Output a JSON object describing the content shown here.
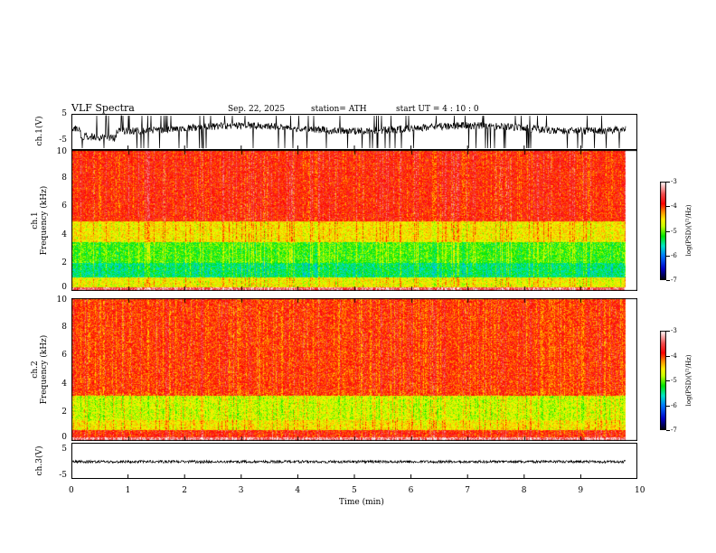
{
  "header": {
    "title": "VLF  Spectra",
    "date": "Sep. 22, 2025",
    "station": "station= ATH",
    "start": "start  UT  =   4  : 10 : 0"
  },
  "chart_data": [
    {
      "type": "line",
      "name": "ch1",
      "ylabel": "ch.1(V)",
      "ylim": [
        -5,
        5
      ],
      "yticks": [
        "5",
        "-5"
      ],
      "description_values": "noisy waveform around +1 V with spikes to ±5"
    },
    {
      "type": "heatmap",
      "name": "ch1-spectrogram",
      "ylabel": "ch.1\nFrequency  (kHz)",
      "ylabel_top": "ch.1",
      "ylabel_bottom": "Frequency  (kHz)",
      "ylim": [
        0,
        10
      ],
      "yticks": [
        "0",
        "2",
        "4",
        "6",
        "8",
        "10"
      ],
      "colorbar": {
        "label": "log(PSD)(V²/Hz)",
        "range": [
          -7,
          -3
        ],
        "ticks": [
          "-3",
          "-4",
          "-5",
          "-6",
          "-7"
        ]
      }
    },
    {
      "type": "heatmap",
      "name": "ch2-spectrogram",
      "ylabel_top": "ch.2",
      "ylabel_bottom": "Frequency  (kHz)",
      "ylim": [
        0,
        10
      ],
      "yticks": [
        "0",
        "2",
        "4",
        "6",
        "8",
        "10"
      ],
      "colorbar": {
        "label": "log(PSD)(V²/Hz)",
        "range": [
          -7,
          -3
        ],
        "ticks": [
          "-3",
          "-4",
          "-5",
          "-6",
          "-7"
        ]
      }
    },
    {
      "type": "line",
      "name": "ch3",
      "ylabel": "ch.3(V)",
      "ylim": [
        -5,
        5
      ],
      "yticks": [
        "5",
        "-5"
      ],
      "description_values": "flat near -1 V"
    }
  ],
  "xaxis": {
    "label": "Time  (min)",
    "ticks": [
      "0",
      "1",
      "2",
      "3",
      "4",
      "5",
      "6",
      "7",
      "8",
      "9",
      "10"
    ],
    "range": [
      0,
      10
    ],
    "data_end": 9.8
  }
}
